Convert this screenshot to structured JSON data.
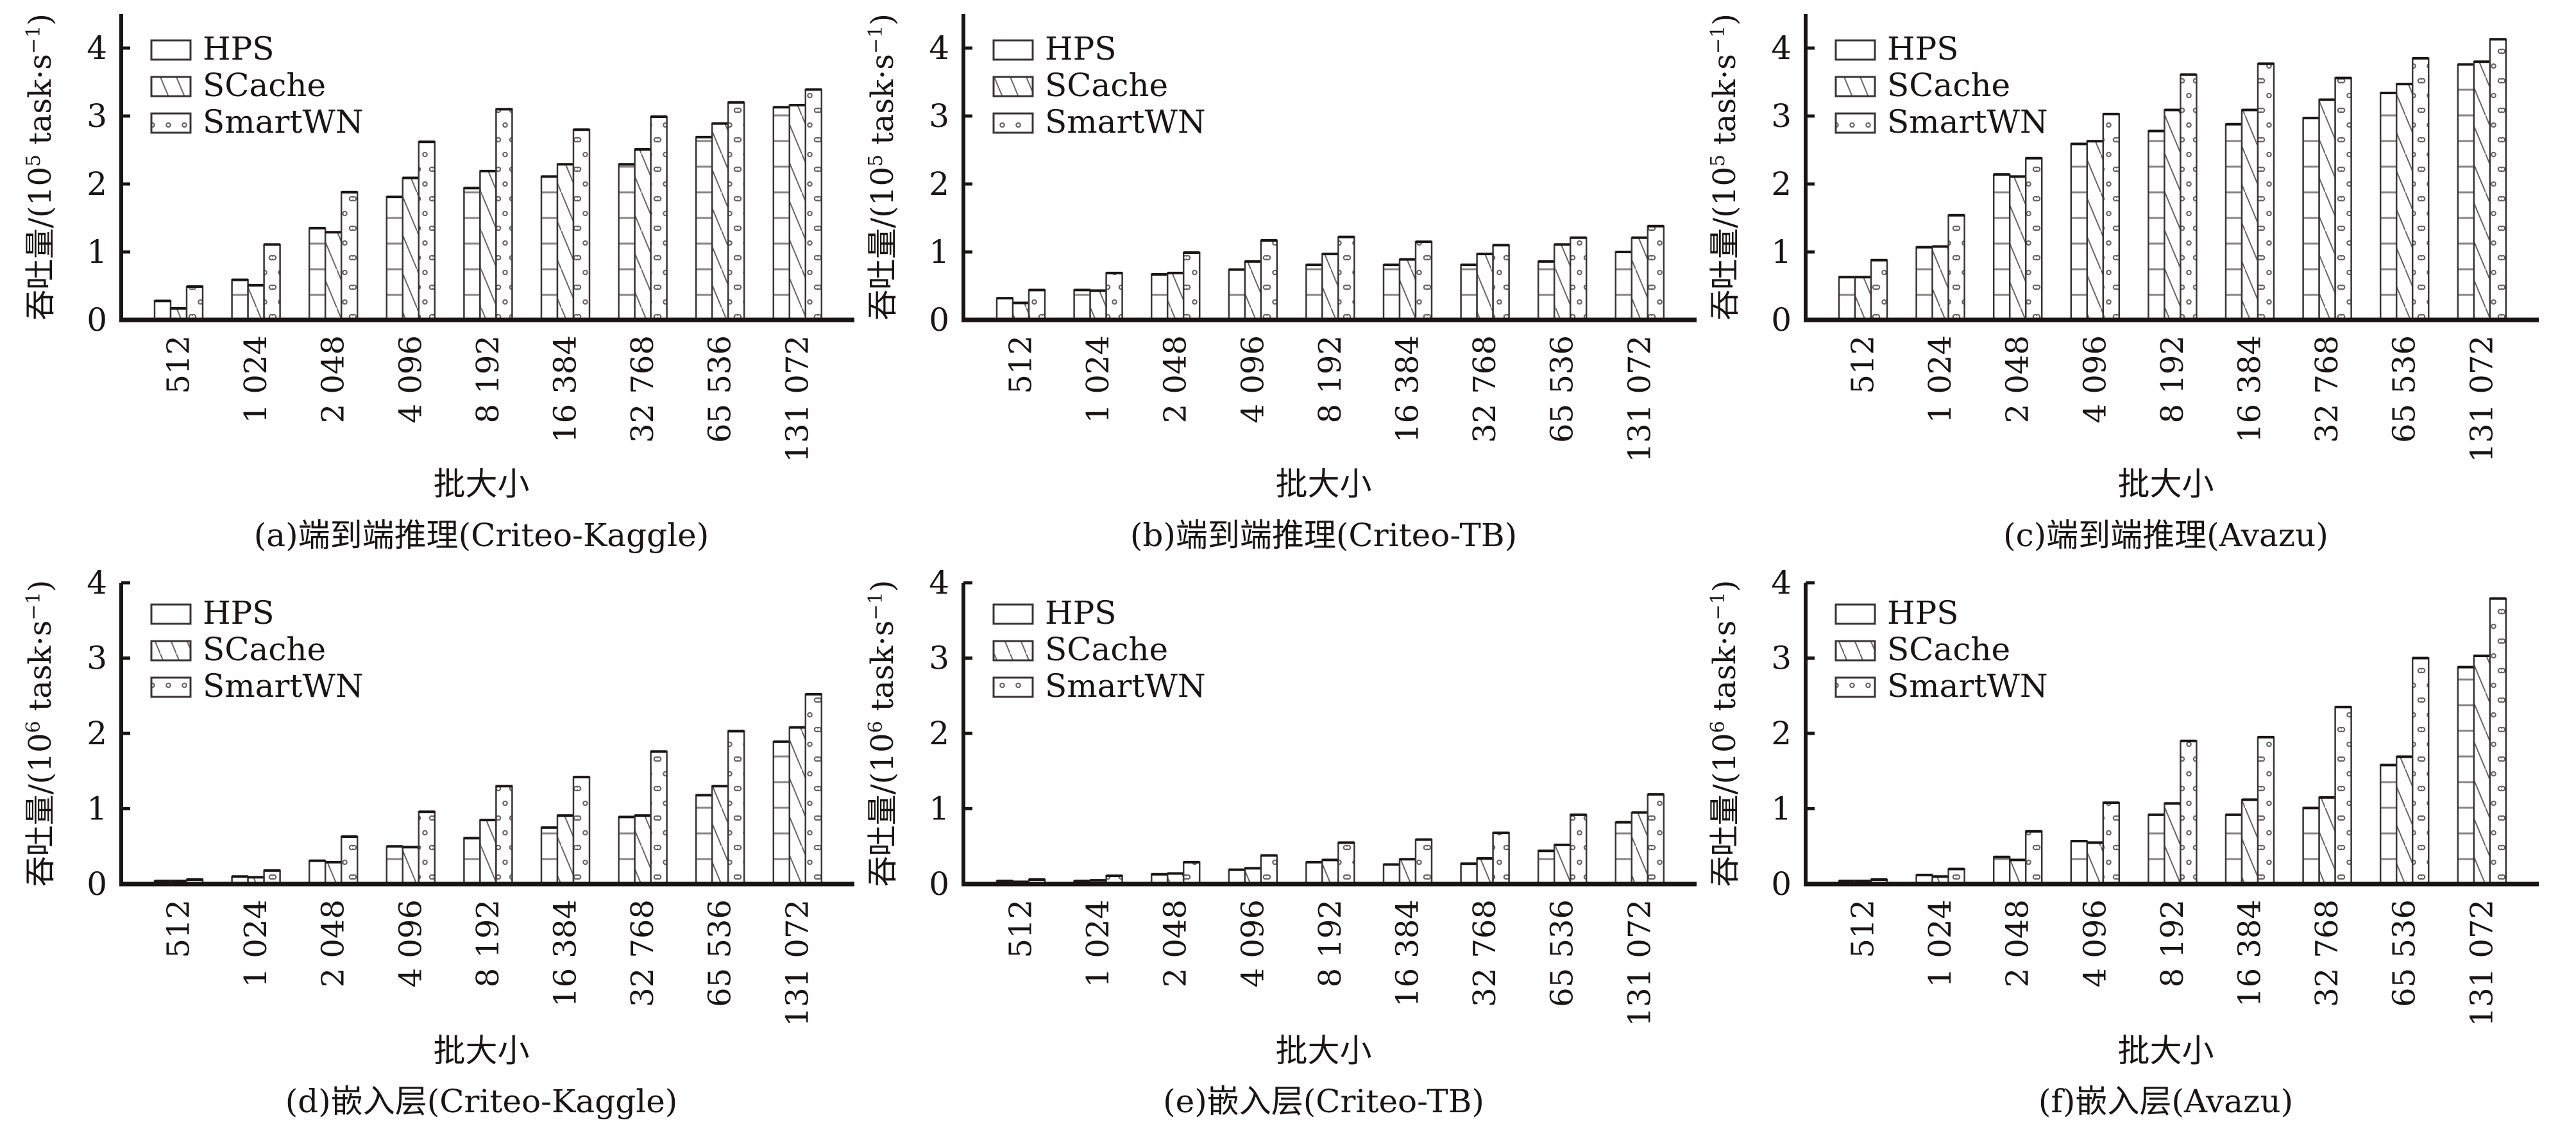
{
  "figure": {
    "series_names": [
      "HPS",
      "SCache",
      "SmartWN"
    ],
    "colors": {
      "ink": "#1a1414",
      "bar_edge": "#3a3434",
      "pattern": "#6a6464",
      "background": "#ffffff"
    }
  },
  "chart_data": [
    {
      "id": "a",
      "type": "bar",
      "title": "(a)端到端推理(Criteo-Kaggle)",
      "xlabel": "批大小",
      "ylabel": "吞吐量/(10⁵ task·s⁻¹)",
      "ylabel_parts": {
        "prefix": "吞吐量/(10",
        "exp": "5",
        "mid": " task·s",
        "exp2": "−1",
        "suffix": ")"
      },
      "categories": [
        "512",
        "1 024",
        "2 048",
        "4 096",
        "8 192",
        "16 384",
        "32 768",
        "65 536",
        "131 072"
      ],
      "yticks": [
        0,
        1,
        2,
        3,
        4
      ],
      "ylim": [
        0,
        4.5
      ],
      "legend": "top-left",
      "grid": false,
      "series": [
        {
          "name": "HPS",
          "pattern": "horizontal-lines",
          "values": [
            0.28,
            0.59,
            1.35,
            1.81,
            1.94,
            2.11,
            2.29,
            2.69,
            3.13
          ]
        },
        {
          "name": "SCache",
          "pattern": "diagonal-lines",
          "values": [
            0.17,
            0.51,
            1.29,
            2.09,
            2.19,
            2.29,
            2.51,
            2.89,
            3.16
          ]
        },
        {
          "name": "SmartWN",
          "pattern": "dots",
          "values": [
            0.49,
            1.11,
            1.88,
            2.62,
            3.1,
            2.8,
            2.99,
            3.2,
            3.39
          ]
        }
      ]
    },
    {
      "id": "b",
      "type": "bar",
      "title": "(b)端到端推理(Criteo-TB)",
      "xlabel": "批大小",
      "ylabel": "吞吐量/(10⁵ task·s⁻¹)",
      "ylabel_parts": {
        "prefix": "吞吐量/(10",
        "exp": "5",
        "mid": " task·s",
        "exp2": "−1",
        "suffix": ")"
      },
      "categories": [
        "512",
        "1 024",
        "2 048",
        "4 096",
        "8 192",
        "16 384",
        "32 768",
        "65 536",
        "131 072"
      ],
      "yticks": [
        0,
        1,
        2,
        3,
        4
      ],
      "ylim": [
        0,
        4.5
      ],
      "legend": "top-left",
      "grid": false,
      "series": [
        {
          "name": "HPS",
          "pattern": "horizontal-lines",
          "values": [
            0.32,
            0.44,
            0.67,
            0.74,
            0.81,
            0.81,
            0.81,
            0.86,
            1.0
          ]
        },
        {
          "name": "SCache",
          "pattern": "diagonal-lines",
          "values": [
            0.25,
            0.43,
            0.69,
            0.86,
            0.97,
            0.89,
            0.97,
            1.11,
            1.21
          ]
        },
        {
          "name": "SmartWN",
          "pattern": "dots",
          "values": [
            0.44,
            0.69,
            0.99,
            1.17,
            1.22,
            1.15,
            1.1,
            1.21,
            1.38
          ]
        }
      ]
    },
    {
      "id": "c",
      "type": "bar",
      "title": "(c)端到端推理(Avazu)",
      "xlabel": "批大小",
      "ylabel": "吞吐量/(10⁵ task·s⁻¹)",
      "ylabel_parts": {
        "prefix": "吞吐量/(10",
        "exp": "5",
        "mid": " task·s",
        "exp2": "−1",
        "suffix": ")"
      },
      "categories": [
        "512",
        "1 024",
        "2 048",
        "4 096",
        "8 192",
        "16 384",
        "32 768",
        "65 536",
        "131 072"
      ],
      "yticks": [
        0,
        1,
        2,
        3,
        4
      ],
      "ylim": [
        0,
        4.5
      ],
      "legend": "top-left",
      "grid": false,
      "series": [
        {
          "name": "HPS",
          "pattern": "horizontal-lines",
          "values": [
            0.63,
            1.07,
            2.14,
            2.59,
            2.78,
            2.88,
            2.97,
            3.34,
            3.76
          ]
        },
        {
          "name": "SCache",
          "pattern": "diagonal-lines",
          "values": [
            0.63,
            1.08,
            2.11,
            2.63,
            3.09,
            3.09,
            3.24,
            3.47,
            3.8
          ]
        },
        {
          "name": "SmartWN",
          "pattern": "dots",
          "values": [
            0.88,
            1.54,
            2.38,
            3.03,
            3.61,
            3.77,
            3.56,
            3.85,
            4.13
          ]
        }
      ]
    },
    {
      "id": "d",
      "type": "bar",
      "title": "(d)嵌入层(Criteo-Kaggle)",
      "xlabel": "批大小",
      "ylabel": "吞吐量/(10⁶ task·s⁻¹)",
      "ylabel_parts": {
        "prefix": "吞吐量/(10",
        "exp": "6",
        "mid": " task·s",
        "exp2": "−1",
        "suffix": ")"
      },
      "categories": [
        "512",
        "1 024",
        "2 048",
        "4 096",
        "8 192",
        "16 384",
        "32 768",
        "65 536",
        "131 072"
      ],
      "yticks": [
        0,
        1,
        2,
        3,
        4
      ],
      "ylim": [
        0,
        4
      ],
      "legend": "top-left",
      "grid": false,
      "series": [
        {
          "name": "HPS",
          "pattern": "horizontal-lines",
          "values": [
            0.04,
            0.1,
            0.31,
            0.5,
            0.61,
            0.75,
            0.89,
            1.18,
            1.89
          ]
        },
        {
          "name": "SCache",
          "pattern": "diagonal-lines",
          "values": [
            0.04,
            0.09,
            0.29,
            0.49,
            0.85,
            0.91,
            0.91,
            1.3,
            2.08
          ]
        },
        {
          "name": "SmartWN",
          "pattern": "dots",
          "values": [
            0.06,
            0.18,
            0.63,
            0.96,
            1.3,
            1.42,
            1.76,
            2.03,
            2.52
          ]
        }
      ]
    },
    {
      "id": "e",
      "type": "bar",
      "title": "(e)嵌入层(Criteo-TB)",
      "xlabel": "批大小",
      "ylabel": "吞吐量/(10⁶ task·s⁻¹)",
      "ylabel_parts": {
        "prefix": "吞吐量/(10",
        "exp": "6",
        "mid": " task·s",
        "exp2": "−1",
        "suffix": ")"
      },
      "categories": [
        "512",
        "1 024",
        "2 048",
        "4 096",
        "8 192",
        "16 384",
        "32 768",
        "65 536",
        "131 072"
      ],
      "yticks": [
        0,
        1,
        2,
        3,
        4
      ],
      "ylim": [
        0,
        4
      ],
      "legend": "top-left",
      "grid": false,
      "series": [
        {
          "name": "HPS",
          "pattern": "horizontal-lines",
          "values": [
            0.04,
            0.04,
            0.13,
            0.19,
            0.29,
            0.26,
            0.27,
            0.44,
            0.82
          ]
        },
        {
          "name": "SCache",
          "pattern": "diagonal-lines",
          "values": [
            0.03,
            0.05,
            0.14,
            0.21,
            0.32,
            0.33,
            0.34,
            0.52,
            0.95
          ]
        },
        {
          "name": "SmartWN",
          "pattern": "dots",
          "values": [
            0.06,
            0.11,
            0.29,
            0.38,
            0.55,
            0.59,
            0.68,
            0.92,
            1.19
          ]
        }
      ]
    },
    {
      "id": "f",
      "type": "bar",
      "title": "(f)嵌入层(Avazu)",
      "xlabel": "批大小",
      "ylabel": "吞吐量/(10⁶ task·s⁻¹)",
      "ylabel_parts": {
        "prefix": "吞吐量/(10",
        "exp": "6",
        "mid": " task·s",
        "exp2": "−1",
        "suffix": ")"
      },
      "categories": [
        "512",
        "1 024",
        "2 048",
        "4 096",
        "8 192",
        "16 384",
        "32 768",
        "65 536",
        "131 072"
      ],
      "yticks": [
        0,
        1,
        2,
        3,
        4
      ],
      "ylim": [
        0,
        4
      ],
      "legend": "top-left",
      "grid": false,
      "series": [
        {
          "name": "HPS",
          "pattern": "horizontal-lines",
          "values": [
            0.04,
            0.12,
            0.36,
            0.57,
            0.92,
            0.92,
            1.01,
            1.58,
            2.88
          ]
        },
        {
          "name": "SCache",
          "pattern": "diagonal-lines",
          "values": [
            0.04,
            0.1,
            0.32,
            0.55,
            1.07,
            1.12,
            1.15,
            1.69,
            3.03
          ]
        },
        {
          "name": "SmartWN",
          "pattern": "dots",
          "values": [
            0.06,
            0.2,
            0.7,
            1.08,
            1.9,
            1.95,
            2.35,
            3.0,
            3.79
          ]
        }
      ]
    }
  ]
}
